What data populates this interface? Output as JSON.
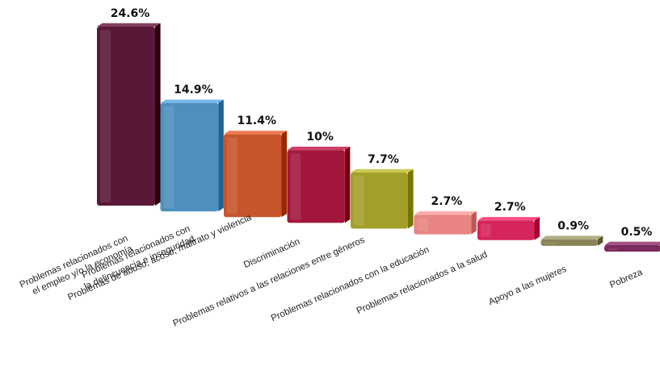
{
  "chart_data": {
    "type": "bar",
    "title": "",
    "xlabel": "",
    "ylabel": "",
    "ylim": [
      0,
      24.6
    ],
    "grid": false,
    "legend": "none",
    "categories": [
      [
        "Problemas relacionados con",
        "el empleo y/o la economía"
      ],
      [
        "Problemas relacionados con",
        "la delincuencia e inseguridad"
      ],
      [
        "Problemas de abuso, acoso, maltrato y violencia"
      ],
      [
        "Discriminación"
      ],
      [
        "Problemas relativos a las relaciones entre géneros"
      ],
      [
        "Problemas relacionados con la educación"
      ],
      [
        "Problemas relacionados a la salud"
      ],
      [
        "Apoyo a las mujeres"
      ],
      [
        "Pobreza"
      ]
    ],
    "values": [
      24.6,
      14.9,
      11.4,
      10,
      7.7,
      2.7,
      2.7,
      0.9,
      0.5
    ],
    "value_labels": [
      "24.6%",
      "14.9%",
      "11.4%",
      "10%",
      "7.7%",
      "2.7%",
      "2.7%",
      "0.9%",
      "0.5%"
    ],
    "colors": [
      "#5a1838",
      "#4d8fbf",
      "#c7552c",
      "#a3173d",
      "#a3a02a",
      "#e88583",
      "#d6245c",
      "#8a8558",
      "#7a2a5c"
    ]
  }
}
